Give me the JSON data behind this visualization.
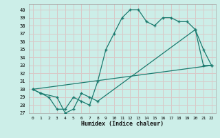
{
  "xlabel": "Humidex (Indice chaleur)",
  "bg_color": "#cceee8",
  "grid_color": "#d9c8c8",
  "line_color": "#1a7a6e",
  "xlim": [
    -0.5,
    22.5
  ],
  "ylim": [
    27,
    40.7
  ],
  "xticks": [
    0,
    1,
    2,
    3,
    4,
    5,
    6,
    7,
    8,
    9,
    10,
    11,
    12,
    13,
    14,
    15,
    16,
    17,
    18,
    19,
    20,
    21,
    22
  ],
  "yticks": [
    27,
    28,
    29,
    30,
    31,
    32,
    33,
    34,
    35,
    36,
    37,
    38,
    39,
    40
  ],
  "line1_x": [
    0,
    1,
    2,
    3,
    4,
    5,
    6,
    7,
    8,
    9,
    10,
    11,
    12,
    13,
    14,
    15,
    16,
    17,
    18,
    19,
    20,
    21,
    22
  ],
  "line1_y": [
    30,
    29.5,
    29,
    27.5,
    27.5,
    29,
    28.5,
    28,
    31,
    35,
    37,
    39,
    40,
    40,
    38.5,
    38,
    39,
    39,
    38.5,
    38.5,
    37.5,
    33,
    33
  ],
  "line2_x": [
    0,
    1,
    3,
    4,
    5,
    6,
    7,
    8,
    20,
    21,
    22
  ],
  "line2_y": [
    30,
    29.5,
    29,
    27,
    27.5,
    29.5,
    29,
    28.5,
    37.5,
    35,
    33
  ],
  "line3_x": [
    0,
    22
  ],
  "line3_y": [
    30,
    33
  ]
}
